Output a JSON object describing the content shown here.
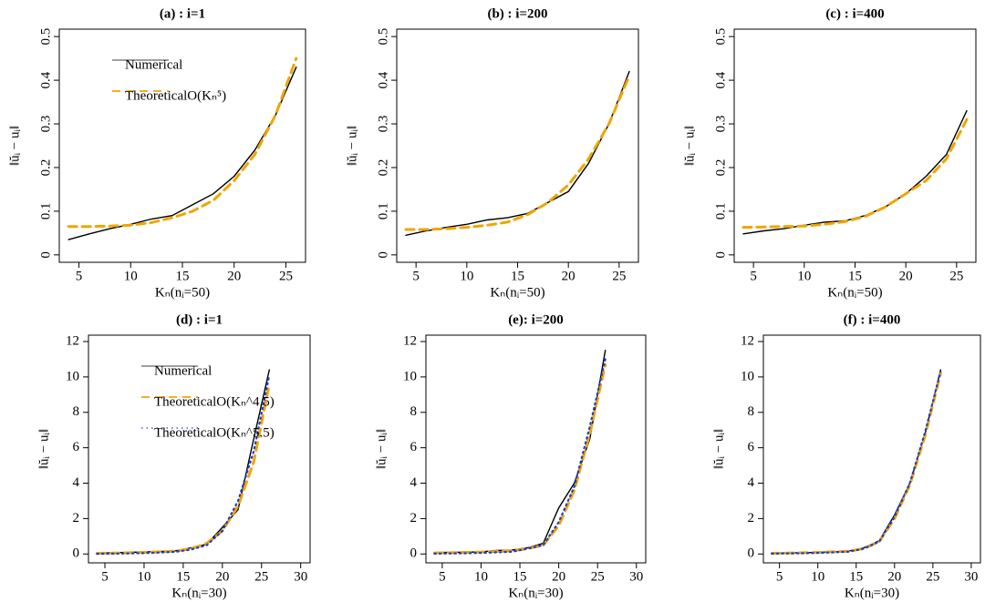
{
  "chart_data": [
    {
      "type": "line",
      "title": "(a) : i=1",
      "x_label": "Kₙ(nᵢ=50)",
      "y_label": "‖ŭᵢ − uᵢ‖",
      "x": [
        4,
        6,
        8,
        10,
        12,
        14,
        16,
        18,
        20,
        22,
        24,
        26
      ],
      "xlim": [
        3.1,
        26.9
      ],
      "xticks": [
        5,
        10,
        15,
        20,
        25
      ],
      "ylim": [
        -0.017,
        0.517
      ],
      "yticks": [
        0.0,
        0.1,
        0.2,
        0.3,
        0.4,
        0.5
      ],
      "legend": "top-left",
      "series": [
        {
          "name": "Numerical",
          "color": "#000000",
          "style": "solid",
          "values": [
            0.035,
            0.048,
            0.06,
            0.07,
            0.082,
            0.09,
            0.115,
            0.14,
            0.18,
            0.24,
            0.32,
            0.43
          ]
        },
        {
          "name": "TheoreticalO(Kₙ⁵)",
          "color": "#f0a500",
          "style": "dashed",
          "values": [
            0.065,
            0.065,
            0.066,
            0.068,
            0.074,
            0.085,
            0.1,
            0.125,
            0.17,
            0.23,
            0.32,
            0.45
          ]
        }
      ]
    },
    {
      "type": "line",
      "title": "(b) : i=200",
      "x_label": "Kₙ(nᵢ=50)",
      "y_label": "‖ŭᵢ − uᵢ‖",
      "x": [
        4,
        6,
        8,
        10,
        12,
        14,
        16,
        18,
        20,
        22,
        24,
        26
      ],
      "xlim": [
        3.1,
        26.9
      ],
      "xticks": [
        5,
        10,
        15,
        20,
        25
      ],
      "ylim": [
        -0.017,
        0.517
      ],
      "yticks": [
        0.0,
        0.1,
        0.2,
        0.3,
        0.4,
        0.5
      ],
      "series": [
        {
          "color": "#000000",
          "style": "solid",
          "values": [
            0.045,
            0.055,
            0.063,
            0.07,
            0.08,
            0.085,
            0.095,
            0.12,
            0.145,
            0.21,
            0.3,
            0.42
          ]
        },
        {
          "color": "#f0a500",
          "style": "dashed",
          "values": [
            0.058,
            0.058,
            0.06,
            0.063,
            0.068,
            0.075,
            0.092,
            0.12,
            0.16,
            0.22,
            0.3,
            0.41
          ]
        }
      ]
    },
    {
      "type": "line",
      "title": "(c) : i=400",
      "x_label": "Kₙ(nᵢ=50)",
      "y_label": "‖ŭᵢ − uᵢ‖",
      "x": [
        4,
        6,
        8,
        10,
        12,
        14,
        16,
        18,
        20,
        22,
        24,
        26
      ],
      "xlim": [
        3.1,
        26.9
      ],
      "xticks": [
        5,
        10,
        15,
        20,
        25
      ],
      "ylim": [
        -0.017,
        0.517
      ],
      "yticks": [
        0.0,
        0.1,
        0.2,
        0.3,
        0.4,
        0.5
      ],
      "series": [
        {
          "color": "#000000",
          "style": "solid",
          "values": [
            0.048,
            0.055,
            0.06,
            0.068,
            0.075,
            0.078,
            0.09,
            0.11,
            0.14,
            0.18,
            0.23,
            0.33
          ]
        },
        {
          "color": "#f0a500",
          "style": "dashed",
          "values": [
            0.063,
            0.064,
            0.065,
            0.066,
            0.07,
            0.076,
            0.088,
            0.11,
            0.14,
            0.17,
            0.22,
            0.31
          ]
        }
      ]
    },
    {
      "type": "line",
      "title": "(d) : i=1",
      "x_label": "Kₙ(nᵢ=30)",
      "y_label": "‖ŭᵢ − uᵢ‖",
      "x": [
        4,
        6,
        8,
        10,
        12,
        14,
        16,
        18,
        20,
        22,
        24,
        26
      ],
      "xlim": [
        2.9,
        31.2
      ],
      "xticks": [
        5,
        10,
        15,
        20,
        25,
        30
      ],
      "ylim": [
        -0.5,
        12.36
      ],
      "yticks": [
        0,
        2,
        4,
        6,
        8,
        10,
        12
      ],
      "legend": "top-left",
      "series": [
        {
          "name": "Numerical",
          "color": "#000000",
          "style": "solid",
          "values": [
            0.05,
            0.07,
            0.09,
            0.11,
            0.14,
            0.18,
            0.35,
            0.55,
            1.5,
            2.5,
            6.5,
            10.4
          ]
        },
        {
          "name": "TheoreticalO(Kₙ^4.5)",
          "color": "#f0a500",
          "style": "dashed",
          "values": [
            0.04,
            0.05,
            0.07,
            0.09,
            0.12,
            0.16,
            0.3,
            0.6,
            1.3,
            2.7,
            5.2,
            9.6
          ]
        },
        {
          "name": "TheoreticalO(Kₙ^5.5)",
          "color": "#1f3fd0",
          "style": "dotted",
          "values": [
            0.01,
            0.02,
            0.03,
            0.05,
            0.08,
            0.12,
            0.25,
            0.5,
            1.3,
            3.0,
            5.8,
            10.1
          ]
        }
      ]
    },
    {
      "type": "line",
      "title": "(e): i=200",
      "x_label": "Kₙ(nᵢ=30)",
      "y_label": "‖ŭᵢ − uᵢ‖",
      "x": [
        4,
        6,
        8,
        10,
        12,
        14,
        16,
        18,
        20,
        22,
        24,
        26
      ],
      "xlim": [
        2.9,
        31.2
      ],
      "xticks": [
        5,
        10,
        15,
        20,
        25,
        30
      ],
      "ylim": [
        -0.5,
        12.36
      ],
      "yticks": [
        0,
        2,
        4,
        6,
        8,
        10,
        12
      ],
      "series": [
        {
          "color": "#000000",
          "style": "solid",
          "values": [
            0.08,
            0.09,
            0.1,
            0.12,
            0.2,
            0.22,
            0.35,
            0.6,
            2.6,
            4.0,
            6.5,
            11.5
          ]
        },
        {
          "color": "#f0a500",
          "style": "dashed",
          "values": [
            0.06,
            0.07,
            0.09,
            0.11,
            0.14,
            0.18,
            0.3,
            0.5,
            1.6,
            3.6,
            6.8,
            10.7
          ]
        },
        {
          "color": "#1f3fd0",
          "style": "dotted",
          "values": [
            0.02,
            0.03,
            0.04,
            0.06,
            0.09,
            0.13,
            0.3,
            0.5,
            1.8,
            3.8,
            7.2,
            11.0
          ]
        }
      ]
    },
    {
      "type": "line",
      "title": "(f) : i=400",
      "x_label": "Kₙ(nᵢ=30)",
      "y_label": "‖ŭᵢ − uᵢ‖",
      "x": [
        4,
        6,
        8,
        10,
        12,
        14,
        16,
        18,
        20,
        22,
        24,
        26
      ],
      "xlim": [
        2.9,
        31.2
      ],
      "xticks": [
        5,
        10,
        15,
        20,
        25,
        30
      ],
      "ylim": [
        -0.5,
        12.36
      ],
      "yticks": [
        0,
        2,
        4,
        6,
        8,
        10,
        12
      ],
      "series": [
        {
          "color": "#000000",
          "style": "solid",
          "values": [
            0.05,
            0.06,
            0.07,
            0.09,
            0.12,
            0.17,
            0.35,
            0.75,
            2.2,
            4.0,
            6.8,
            10.4
          ]
        },
        {
          "color": "#f0a500",
          "style": "dashed",
          "values": [
            0.04,
            0.05,
            0.07,
            0.09,
            0.12,
            0.16,
            0.3,
            0.7,
            2.0,
            3.9,
            6.7,
            10.2
          ]
        },
        {
          "color": "#1f3fd0",
          "style": "dotted",
          "values": [
            0.02,
            0.03,
            0.04,
            0.06,
            0.09,
            0.13,
            0.3,
            0.7,
            2.1,
            4.0,
            6.9,
            10.3
          ]
        }
      ]
    }
  ]
}
